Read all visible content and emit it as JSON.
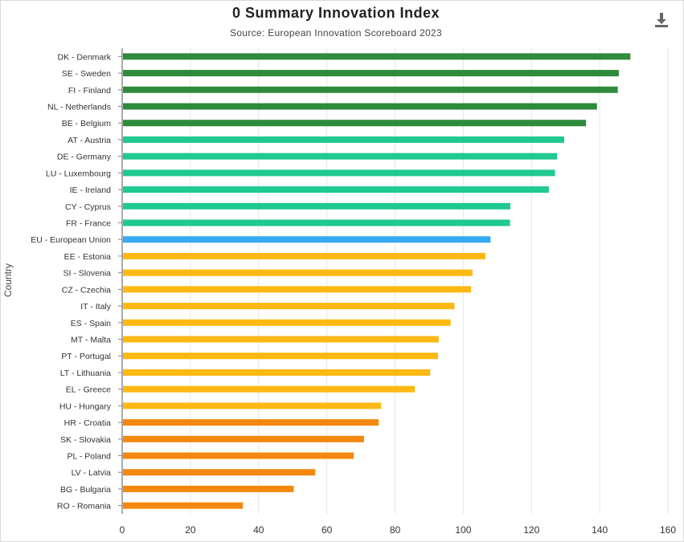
{
  "chart_data": {
    "type": "bar",
    "orientation": "horizontal",
    "title": "0 Summary Innovation Index",
    "subtitle": "Source: European Innovation Scoreboard 2023",
    "ylabel": "Country",
    "xlabel": "",
    "xlim": [
      0,
      160
    ],
    "xticks": [
      "0",
      "20",
      "40",
      "60",
      "80",
      "100",
      "120",
      "140",
      "160"
    ],
    "grid": "vertical",
    "categories": [
      "DK - Denmark",
      "SE - Sweden",
      "FI - Finland",
      "NL - Netherlands",
      "BE - Belgium",
      "AT - Austria",
      "DE - Germany",
      "LU - Luxembourg",
      "IE - Ireland",
      "CY - Cyprus",
      "FR - France",
      "EU - European Union",
      "EE - Estonia",
      "SI - Slovenia",
      "CZ - Czechia",
      "IT - Italy",
      "ES - Spain",
      "MT - Malta",
      "PT - Portugal",
      "LT - Lithuania",
      "EL - Greece",
      "HU - Hungary",
      "HR - Croatia",
      "SK - Slovakia",
      "PL - Poland",
      "LV - Latvia",
      "BG - Bulgaria",
      "RO - Romania"
    ],
    "values": [
      149,
      145.6,
      145.3,
      139.2,
      136,
      129.6,
      127.5,
      126.9,
      125.1,
      113.8,
      113.7,
      108,
      106.5,
      102.7,
      102.3,
      97.4,
      96.3,
      92.8,
      92.6,
      90.3,
      85.8,
      75.9,
      75.2,
      70.9,
      67.9,
      56.6,
      50.3,
      35.4
    ],
    "colors": [
      "#2e8b3c",
      "#2e8b3c",
      "#2e8b3c",
      "#2e8b3c",
      "#2e8b3c",
      "#20c98f",
      "#20c98f",
      "#20c98f",
      "#20c98f",
      "#20c98f",
      "#20c98f",
      "#33aaf2",
      "#fdb813",
      "#fdb813",
      "#fdb813",
      "#fdb813",
      "#fdb813",
      "#fdb813",
      "#fdb813",
      "#fdb813",
      "#fdb813",
      "#fdb813",
      "#f5870f",
      "#f5870f",
      "#f5870f",
      "#f5870f",
      "#f5870f",
      "#f5870f"
    ]
  },
  "toolbar": {
    "download_icon": "download-icon"
  }
}
